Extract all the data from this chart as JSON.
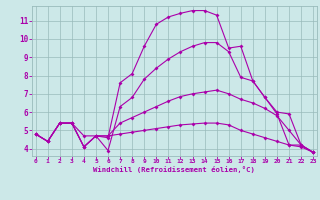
{
  "xlabel": "Windchill (Refroidissement éolien,°C)",
  "background_color": "#cce8e8",
  "line_color": "#aa00aa",
  "grid_color": "#99bbbb",
  "xmin": 0,
  "xmax": 23,
  "ymin": 3.6,
  "ymax": 11.8,
  "yticks": [
    4,
    5,
    6,
    7,
    8,
    9,
    10,
    11
  ],
  "xticks": [
    0,
    1,
    2,
    3,
    4,
    5,
    6,
    7,
    8,
    9,
    10,
    11,
    12,
    13,
    14,
    15,
    16,
    17,
    18,
    19,
    20,
    21,
    22,
    23
  ],
  "lines": [
    {
      "x": [
        0,
        1,
        2,
        3,
        4,
        5,
        6,
        7,
        8,
        9,
        10,
        11,
        12,
        13,
        14,
        15,
        16,
        17,
        18,
        19,
        20,
        21,
        22,
        23
      ],
      "y": [
        4.8,
        4.4,
        5.4,
        5.4,
        4.7,
        4.7,
        4.6,
        7.6,
        8.1,
        9.6,
        10.8,
        11.2,
        11.4,
        11.55,
        11.55,
        11.3,
        9.5,
        9.6,
        7.7,
        6.8,
        5.9,
        4.2,
        4.2,
        3.8
      ]
    },
    {
      "x": [
        0,
        1,
        2,
        3,
        4,
        5,
        6,
        7,
        8,
        9,
        10,
        11,
        12,
        13,
        14,
        15,
        16,
        17,
        18,
        19,
        20,
        21,
        22,
        23
      ],
      "y": [
        4.8,
        4.4,
        5.4,
        5.4,
        4.1,
        4.7,
        3.9,
        6.3,
        6.8,
        7.8,
        8.4,
        8.9,
        9.3,
        9.6,
        9.8,
        9.8,
        9.3,
        7.9,
        7.7,
        6.8,
        6.0,
        5.9,
        4.2,
        3.8
      ]
    },
    {
      "x": [
        0,
        1,
        2,
        3,
        4,
        5,
        6,
        7,
        8,
        9,
        10,
        11,
        12,
        13,
        14,
        15,
        16,
        17,
        18,
        19,
        20,
        21,
        22,
        23
      ],
      "y": [
        4.8,
        4.4,
        5.4,
        5.4,
        4.1,
        4.7,
        4.7,
        5.4,
        5.7,
        6.0,
        6.3,
        6.6,
        6.85,
        7.0,
        7.1,
        7.2,
        7.0,
        6.7,
        6.5,
        6.2,
        5.8,
        5.0,
        4.2,
        3.8
      ]
    },
    {
      "x": [
        0,
        1,
        2,
        3,
        4,
        5,
        6,
        7,
        8,
        9,
        10,
        11,
        12,
        13,
        14,
        15,
        16,
        17,
        18,
        19,
        20,
        21,
        22,
        23
      ],
      "y": [
        4.8,
        4.4,
        5.4,
        5.4,
        4.1,
        4.7,
        4.7,
        4.8,
        4.9,
        5.0,
        5.1,
        5.2,
        5.3,
        5.35,
        5.4,
        5.4,
        5.3,
        5.0,
        4.8,
        4.6,
        4.4,
        4.2,
        4.1,
        3.8
      ]
    }
  ]
}
